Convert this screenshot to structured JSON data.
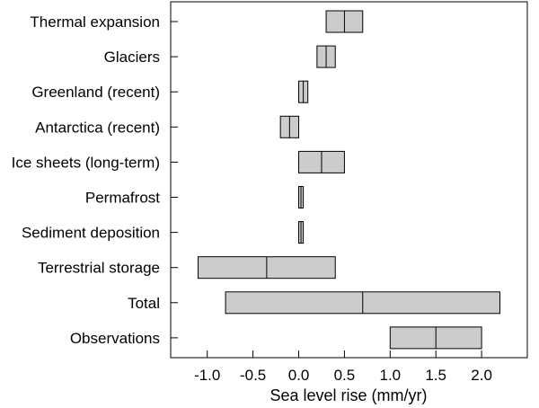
{
  "chart_data": {
    "type": "bar",
    "orientation": "horizontal",
    "subtype": "range-box-with-median",
    "xlabel": "Sea level rise (mm/yr)",
    "xlim": [
      -1.4,
      2.5
    ],
    "xticks": [
      -1.0,
      -0.5,
      0.0,
      0.5,
      1.0,
      1.5,
      2.0
    ],
    "xtick_labels": [
      "-1.0",
      "-0.5",
      "0.0",
      "0.5",
      "1.0",
      "1.5",
      "2.0"
    ],
    "grid": false,
    "box_color": "#cccccc",
    "edge_color": "#000000",
    "categories": [
      "Thermal expansion",
      "Glaciers",
      "Greenland (recent)",
      "Antarctica (recent)",
      "Ice sheets (long-term)",
      "Permafrost",
      "Sediment deposition",
      "Terrestrial storage",
      "Total",
      "Observations"
    ],
    "ranges": [
      {
        "low": 0.3,
        "mid": 0.5,
        "high": 0.7
      },
      {
        "low": 0.2,
        "mid": 0.3,
        "high": 0.4
      },
      {
        "low": 0.0,
        "mid": 0.05,
        "high": 0.1
      },
      {
        "low": -0.2,
        "mid": -0.1,
        "high": 0.0
      },
      {
        "low": 0.0,
        "mid": 0.25,
        "high": 0.5
      },
      {
        "low": 0.0,
        "mid": 0.025,
        "high": 0.05
      },
      {
        "low": 0.0,
        "mid": 0.025,
        "high": 0.05
      },
      {
        "low": -1.1,
        "mid": -0.35,
        "high": 0.4
      },
      {
        "low": -0.8,
        "mid": 0.7,
        "high": 2.2
      },
      {
        "low": 1.0,
        "mid": 1.5,
        "high": 2.0
      }
    ]
  }
}
